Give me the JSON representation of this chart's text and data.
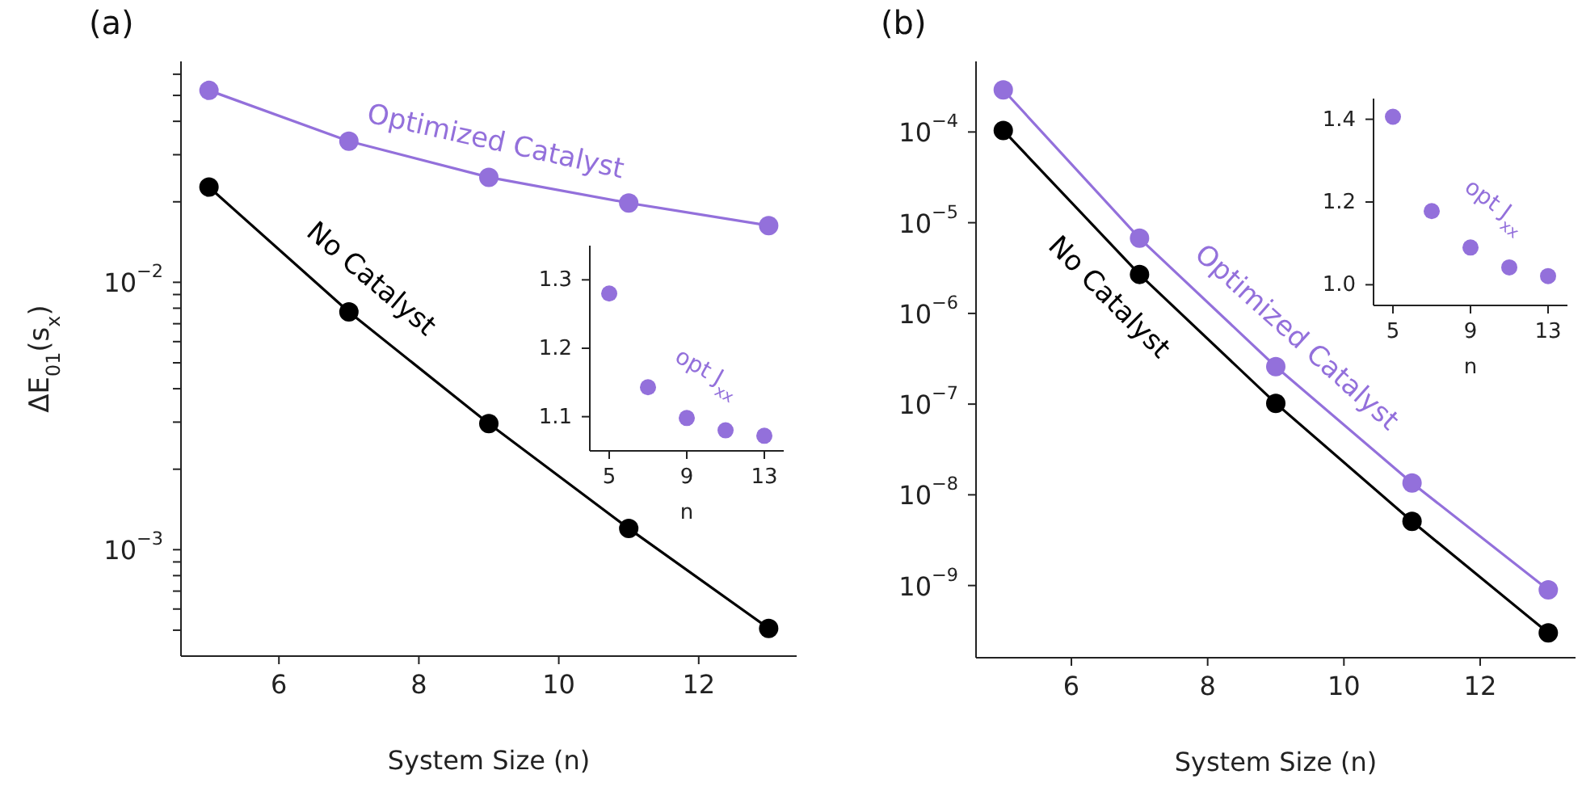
{
  "chart_data": [
    {
      "type": "line",
      "title": "(a)",
      "xlabel": "System Size (n)",
      "ylabel": "ΔE$_{01}$(s$_{x}$)",
      "x": [
        5,
        7,
        9,
        11,
        13
      ],
      "xlim": [
        4.6,
        13.4
      ],
      "xticks": [
        6,
        8,
        10,
        12
      ],
      "ylim": [
        0.0004,
        0.067
      ],
      "log": "y",
      "marker": "circle",
      "yticks": [
        {
          "value": 0.0005,
          "label": null
        },
        {
          "value": 0.0006,
          "label": null
        },
        {
          "value": 0.0007,
          "label": null
        },
        {
          "value": 0.0008,
          "label": null
        },
        {
          "value": 0.0009,
          "label": null
        },
        {
          "value": 0.001,
          "label": "10$^{−3}$"
        },
        {
          "value": 0.002,
          "label": null
        },
        {
          "value": 0.003,
          "label": null
        },
        {
          "value": 0.004,
          "label": null
        },
        {
          "value": 0.005,
          "label": null
        },
        {
          "value": 0.006,
          "label": null
        },
        {
          "value": 0.007,
          "label": null
        },
        {
          "value": 0.008,
          "label": null
        },
        {
          "value": 0.009,
          "label": null
        },
        {
          "value": 0.01,
          "label": "10$^{−2}$"
        },
        {
          "value": 0.02,
          "label": null
        },
        {
          "value": 0.03,
          "label": null
        },
        {
          "value": 0.04,
          "label": null
        },
        {
          "value": 0.05,
          "label": null
        },
        {
          "value": 0.06,
          "label": null
        }
      ],
      "series": [
        {
          "name": "Optimized Catalyst",
          "color": "#9370db",
          "values": [
            0.0522,
            0.0337,
            0.0247,
            0.0198,
            0.0163
          ]
        },
        {
          "name": "No Catalyst",
          "color": "#000000",
          "values": [
            0.0227,
            0.00775,
            0.00296,
            0.0012,
            0.000508
          ]
        }
      ]
    },
    {
      "type": "scatter",
      "xlabel": "n",
      "x": [
        5,
        7,
        9,
        11,
        13
      ],
      "xlim": [
        4,
        14
      ],
      "xticks": [
        5,
        9,
        13
      ],
      "ylim": [
        1.05,
        1.35
      ],
      "yticks": [
        1.1,
        1.2,
        1.3
      ],
      "marker": "circle",
      "series": [
        {
          "name": "opt J$_{xx}$",
          "color": "#9370db",
          "values": [
            1.28,
            1.143,
            1.098,
            1.08,
            1.072
          ]
        }
      ]
    },
    {
      "type": "line",
      "title": "(b)",
      "xlabel": "System Size (n)",
      "x": [
        5,
        7,
        9,
        11,
        13
      ],
      "xlim": [
        4.6,
        13.4
      ],
      "xticks": [
        6,
        8,
        10,
        12
      ],
      "ylim": [
        1.6e-10,
        0.0006
      ],
      "log": "y",
      "marker": "circle",
      "yticks": [
        {
          "value": 1e-09,
          "label": "10$^{−9}$"
        },
        {
          "value": 1e-08,
          "label": "10$^{−8}$"
        },
        {
          "value": 1e-07,
          "label": "10$^{−7}$"
        },
        {
          "value": 1e-06,
          "label": "10$^{−6}$"
        },
        {
          "value": 1e-05,
          "label": "10$^{−5}$"
        },
        {
          "value": 0.0001,
          "label": "10$^{−4}$"
        }
      ],
      "series": [
        {
          "name": "Optimized Catalyst",
          "color": "#9370db",
          "values": [
            0.000291,
            6.74e-06,
            2.59e-07,
            1.35e-08,
            8.95e-10
          ]
        },
        {
          "name": "No Catalyst",
          "color": "#000000",
          "values": [
            0.000104,
            2.69e-06,
            1.02e-07,
            5.09e-09,
            3e-10
          ]
        }
      ]
    },
    {
      "type": "scatter",
      "xlabel": "n",
      "x": [
        5,
        7,
        9,
        11,
        13
      ],
      "xlim": [
        4,
        14
      ],
      "xticks": [
        5,
        9,
        13
      ],
      "ylim": [
        0.95,
        1.45
      ],
      "yticks": [
        {
          "value": 1,
          "label": "1.0"
        },
        1.2,
        1.4
      ],
      "marker": "circle",
      "series": [
        {
          "name": "opt J$_{xx}$",
          "color": "#9370db",
          "values": [
            1.406,
            1.178,
            1.09,
            1.042,
            1.021
          ]
        }
      ]
    }
  ]
}
